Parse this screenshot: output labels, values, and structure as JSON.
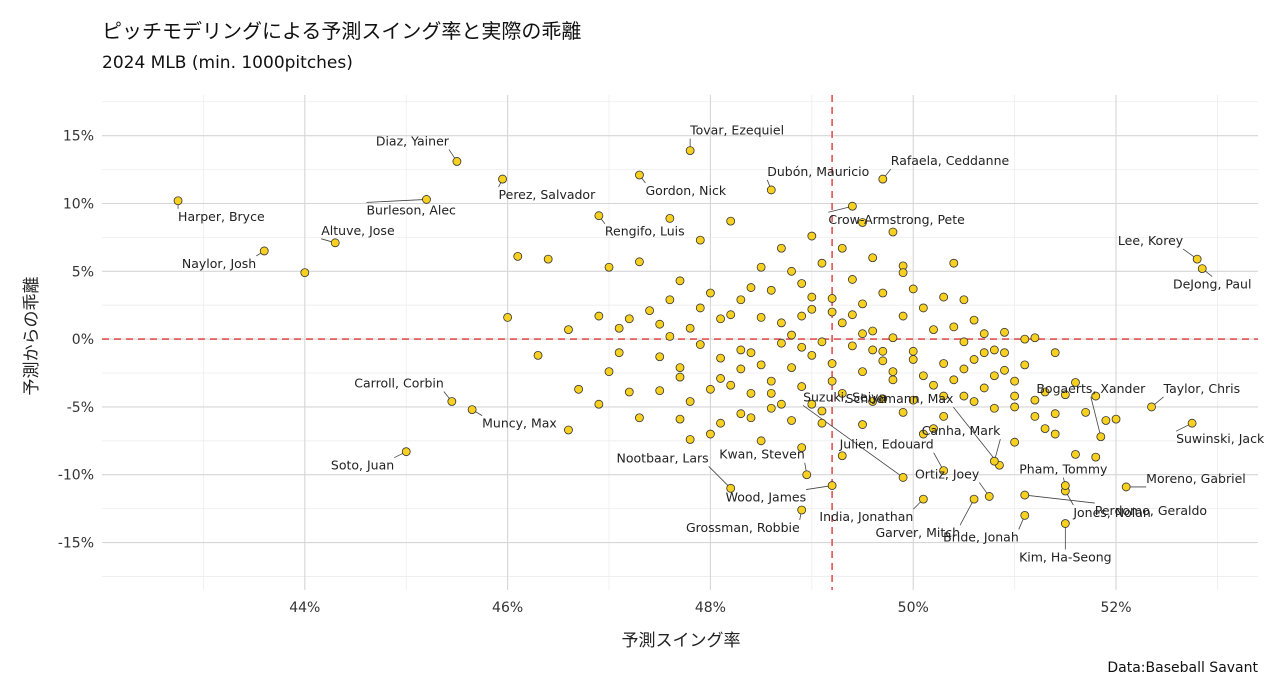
{
  "chart_data": {
    "type": "scatter",
    "title": "ピッチモデリングによる予測スイング率と実際の乖離",
    "subtitle": "2024 MLB (min. 1000pitches)",
    "xlabel": "予測スイング率",
    "ylabel": "予測からの乖離",
    "caption": "Data:Baseball Savant",
    "xlim": [
      42.0,
      53.4
    ],
    "ylim": [
      -18.5,
      18.0
    ],
    "x_ticks": [
      44,
      46,
      48,
      50,
      52
    ],
    "x_tick_labels": [
      "44%",
      "46%",
      "48%",
      "50%",
      "52%"
    ],
    "y_ticks": [
      15,
      10,
      5,
      0,
      -5,
      -10,
      -15
    ],
    "y_tick_labels": [
      "15%",
      "10%",
      "5%",
      "0%",
      "-5%",
      "-10%",
      "-15%"
    ],
    "ref_x": 49.2,
    "ref_y": 0,
    "grid": true,
    "point_color": "#f7d020",
    "reference_line_color": "#e05252",
    "labeled_points": [
      {
        "name": "Harper, Bryce",
        "x": 42.75,
        "y": 10.2
      },
      {
        "name": "Naylor, Josh",
        "x": 43.6,
        "y": 6.5
      },
      {
        "name": "Altuve, Jose",
        "x": 44.3,
        "y": 7.1
      },
      {
        "name": "Diaz, Yainer",
        "x": 45.5,
        "y": 13.1
      },
      {
        "name": "Burleson, Alec",
        "x": 45.2,
        "y": 10.3
      },
      {
        "name": "Perez, Salvador",
        "x": 45.95,
        "y": 11.8
      },
      {
        "name": "Carroll, Corbin",
        "x": 45.45,
        "y": -4.6
      },
      {
        "name": "Muncy, Max",
        "x": 45.65,
        "y": -5.2
      },
      {
        "name": "Soto, Juan",
        "x": 45.0,
        "y": -8.3
      },
      {
        "name": "Rengifo, Luis",
        "x": 46.9,
        "y": 9.1
      },
      {
        "name": "Gordon, Nick",
        "x": 47.3,
        "y": 12.1
      },
      {
        "name": "Tovar, Ezequiel",
        "x": 47.8,
        "y": 13.9
      },
      {
        "name": "Dubón, Mauricio",
        "x": 48.6,
        "y": 11.0
      },
      {
        "name": "Rafaela, Ceddanne",
        "x": 49.7,
        "y": 11.8
      },
      {
        "name": "Crow-Armstrong, Pete",
        "x": 49.4,
        "y": 9.8
      },
      {
        "name": "Nootbaar, Lars",
        "x": 48.2,
        "y": -11.0
      },
      {
        "name": "Kwan, Steven",
        "x": 48.95,
        "y": -10.0
      },
      {
        "name": "Wood, James",
        "x": 49.2,
        "y": -10.8
      },
      {
        "name": "Grossman, Robbie",
        "x": 48.9,
        "y": -12.6
      },
      {
        "name": "Suzuki, Seiya",
        "x": 49.9,
        "y": -10.2
      },
      {
        "name": "Julien, Edouard",
        "x": 50.3,
        "y": -9.7
      },
      {
        "name": "India, Jonathan",
        "x": 50.1,
        "y": -11.8
      },
      {
        "name": "Garver, Mitch",
        "x": 50.6,
        "y": -11.8
      },
      {
        "name": "Ortiz, Joey",
        "x": 50.75,
        "y": -11.6
      },
      {
        "name": "Schuemann, Max",
        "x": 50.85,
        "y": -9.3
      },
      {
        "name": "Canha, Mark",
        "x": 50.8,
        "y": -9.0
      },
      {
        "name": "Bride, Jonah",
        "x": 51.1,
        "y": -13.0
      },
      {
        "name": "Kim, Ha-Seong",
        "x": 51.5,
        "y": -13.6
      },
      {
        "name": "Perdomo, Geraldo",
        "x": 51.1,
        "y": -11.5
      },
      {
        "name": "Jones, Nolan",
        "x": 51.5,
        "y": -11.2
      },
      {
        "name": "Pham, Tommy",
        "x": 51.5,
        "y": -10.8
      },
      {
        "name": "Bogaerts, Xander",
        "x": 51.85,
        "y": -7.2
      },
      {
        "name": "Moreno, Gabriel",
        "x": 52.1,
        "y": -10.9
      },
      {
        "name": "Taylor, Chris",
        "x": 52.35,
        "y": -5.0
      },
      {
        "name": "Suwinski, Jack",
        "x": 52.75,
        "y": -6.2
      },
      {
        "name": "Lee, Korey",
        "x": 52.8,
        "y": 5.9
      },
      {
        "name": "DeJong, Paul",
        "x": 52.85,
        "y": 5.2
      }
    ],
    "points": [
      [
        46.1,
        6.1
      ],
      [
        46.4,
        5.9
      ],
      [
        46.0,
        1.6
      ],
      [
        46.3,
        -1.2
      ],
      [
        46.6,
        0.7
      ],
      [
        46.7,
        -3.7
      ],
      [
        46.6,
        -6.7
      ],
      [
        46.9,
        -4.8
      ],
      [
        47.0,
        -2.4
      ],
      [
        47.0,
        5.3
      ],
      [
        47.2,
        1.5
      ],
      [
        47.2,
        -3.9
      ],
      [
        47.3,
        -5.8
      ],
      [
        47.3,
        5.7
      ],
      [
        47.4,
        2.1
      ],
      [
        47.5,
        1.1
      ],
      [
        47.5,
        -3.8
      ],
      [
        47.6,
        0.2
      ],
      [
        47.6,
        8.9
      ],
      [
        47.7,
        4.3
      ],
      [
        47.7,
        -2.8
      ],
      [
        47.8,
        -4.6
      ],
      [
        47.8,
        -7.4
      ],
      [
        47.9,
        7.3
      ],
      [
        47.9,
        2.3
      ],
      [
        48.0,
        -7.0
      ],
      [
        48.0,
        -3.7
      ],
      [
        48.1,
        1.5
      ],
      [
        48.1,
        -1.4
      ],
      [
        48.2,
        8.7
      ],
      [
        48.2,
        1.8
      ],
      [
        48.3,
        -2.2
      ],
      [
        48.3,
        -5.5
      ],
      [
        48.4,
        3.8
      ],
      [
        48.4,
        -1.0
      ],
      [
        48.4,
        -4.0
      ],
      [
        48.5,
        -7.5
      ],
      [
        48.5,
        1.6
      ],
      [
        48.6,
        3.6
      ],
      [
        48.6,
        -3.1
      ],
      [
        48.7,
        6.7
      ],
      [
        48.7,
        -4.8
      ],
      [
        48.8,
        5.0
      ],
      [
        48.8,
        0.3
      ],
      [
        48.8,
        -2.1
      ],
      [
        48.9,
        4.1
      ],
      [
        48.9,
        -0.6
      ],
      [
        48.9,
        -3.5
      ],
      [
        49.0,
        7.6
      ],
      [
        49.0,
        2.2
      ],
      [
        49.0,
        -1.2
      ],
      [
        49.0,
        -4.8
      ],
      [
        49.1,
        5.6
      ],
      [
        49.1,
        -0.2
      ],
      [
        49.1,
        -6.2
      ],
      [
        49.2,
        3.0
      ],
      [
        49.2,
        -1.8
      ],
      [
        49.3,
        1.2
      ],
      [
        49.3,
        -4.0
      ],
      [
        49.3,
        -8.6
      ],
      [
        49.4,
        4.4
      ],
      [
        49.4,
        -0.5
      ],
      [
        49.5,
        8.6
      ],
      [
        49.5,
        2.6
      ],
      [
        49.5,
        -2.4
      ],
      [
        49.6,
        6.0
      ],
      [
        49.6,
        -4.6
      ],
      [
        49.6,
        0.6
      ],
      [
        49.7,
        3.4
      ],
      [
        49.7,
        -1.6
      ],
      [
        49.8,
        7.9
      ],
      [
        49.8,
        0.1
      ],
      [
        49.8,
        -3.0
      ],
      [
        49.9,
        5.4
      ],
      [
        49.9,
        -5.4
      ],
      [
        49.9,
        1.7
      ],
      [
        50.0,
        -0.9
      ],
      [
        50.0,
        3.7
      ],
      [
        50.0,
        -4.5
      ],
      [
        50.1,
        2.3
      ],
      [
        50.1,
        -2.7
      ],
      [
        50.1,
        -7.0
      ],
      [
        50.2,
        0.7
      ],
      [
        50.2,
        -3.4
      ],
      [
        50.3,
        3.1
      ],
      [
        50.3,
        -1.8
      ],
      [
        50.3,
        -5.7
      ],
      [
        50.4,
        5.6
      ],
      [
        50.4,
        0.9
      ],
      [
        50.4,
        -3.0
      ],
      [
        50.5,
        -0.2
      ],
      [
        50.5,
        -4.2
      ],
      [
        50.6,
        1.4
      ],
      [
        50.6,
        -1.5
      ],
      [
        50.7,
        -3.6
      ],
      [
        50.7,
        0.4
      ],
      [
        50.8,
        -2.7
      ],
      [
        50.8,
        -5.1
      ],
      [
        50.9,
        -1.0
      ],
      [
        50.9,
        0.5
      ],
      [
        51.0,
        -4.2
      ],
      [
        51.0,
        -7.6
      ],
      [
        51.1,
        -1.9
      ],
      [
        51.1,
        0.0
      ],
      [
        51.2,
        -4.5
      ],
      [
        51.2,
        -5.7
      ],
      [
        51.3,
        -3.9
      ],
      [
        51.4,
        -5.5
      ],
      [
        51.4,
        -7.0
      ],
      [
        51.5,
        -4.1
      ],
      [
        51.6,
        -8.5
      ],
      [
        51.6,
        -3.2
      ],
      [
        51.7,
        -5.4
      ],
      [
        51.8,
        -8.7
      ],
      [
        51.9,
        -6.0
      ],
      [
        52.0,
        -5.9
      ],
      [
        51.8,
        -4.2
      ],
      [
        51.2,
        0.1
      ],
      [
        50.2,
        -6.6
      ],
      [
        49.6,
        -0.8
      ],
      [
        48.1,
        -2.9
      ],
      [
        48.3,
        2.9
      ],
      [
        47.8,
        0.8
      ],
      [
        48.5,
        -1.9
      ],
      [
        48.7,
        1.2
      ],
      [
        49.4,
        1.8
      ],
      [
        49.7,
        -0.9
      ],
      [
        50.5,
        -2.2
      ],
      [
        48.6,
        -5.1
      ],
      [
        47.9,
        -0.4
      ],
      [
        48.2,
        -3.4
      ],
      [
        48.8,
        -6.0
      ],
      [
        49.5,
        -6.3
      ],
      [
        49.2,
        -3.1
      ],
      [
        50.6,
        -4.6
      ],
      [
        49.0,
        3.1
      ],
      [
        48.9,
        -8.0
      ],
      [
        48.4,
        -5.8
      ],
      [
        47.5,
        -1.3
      ],
      [
        47.1,
        -1.0
      ],
      [
        49.3,
        6.7
      ],
      [
        49.9,
        4.9
      ],
      [
        50.8,
        -0.8
      ],
      [
        51.0,
        -3.1
      ],
      [
        48.0,
        3.4
      ],
      [
        47.6,
        2.9
      ],
      [
        48.7,
        -0.3
      ],
      [
        49.8,
        -2.4
      ],
      [
        50.3,
        -4.2
      ],
      [
        49.1,
        -5.3
      ],
      [
        48.5,
        5.3
      ],
      [
        49.7,
        -4.4
      ],
      [
        50.9,
        -2.3
      ],
      [
        51.3,
        -6.6
      ],
      [
        48.3,
        -0.8
      ],
      [
        47.7,
        -5.9
      ],
      [
        50.0,
        -1.5
      ],
      [
        49.5,
        0.4
      ],
      [
        48.9,
        1.7
      ],
      [
        48.1,
        -6.2
      ],
      [
        44.0,
        4.9
      ],
      [
        46.9,
        1.7
      ],
      [
        47.1,
        0.8
      ],
      [
        47.7,
        -2.1
      ],
      [
        48.6,
        -4.0
      ],
      [
        49.2,
        2.0
      ],
      [
        50.5,
        2.9
      ],
      [
        50.7,
        -1.0
      ],
      [
        51.4,
        -1.0
      ],
      [
        51.0,
        -5.0
      ]
    ]
  }
}
